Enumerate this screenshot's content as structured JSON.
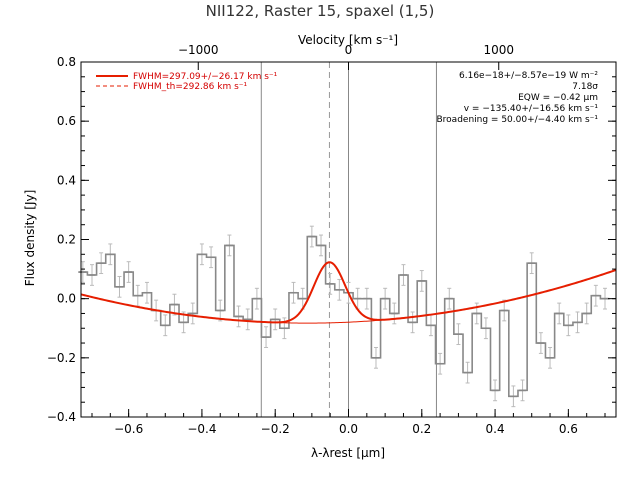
{
  "chart_data": {
    "type": "line",
    "title": "NII122, Raster 15, spaxel (1,5)",
    "xlabel": "λ-λrest [μm]",
    "ylabel": "Flux density [Jy]",
    "top_xlabel": "Velocity [km s⁻¹]",
    "xlim": [
      -0.73,
      0.73
    ],
    "ylim": [
      -0.4,
      0.8
    ],
    "top_axis_ticks": [
      {
        "value": -1000,
        "label": "−1000",
        "x_um": -0.41
      },
      {
        "value": 0,
        "label": "0",
        "x_um": 0.0
      },
      {
        "value": 1000,
        "label": "1000",
        "x_um": 0.41
      }
    ],
    "x_ticks": [
      -0.6,
      -0.4,
      -0.2,
      0.0,
      0.2,
      0.4,
      0.6
    ],
    "x_tick_labels": [
      "−0.6",
      "−0.4",
      "−0.2",
      "0.0",
      "0.2",
      "0.4",
      "0.6"
    ],
    "y_ticks": [
      -0.4,
      -0.2,
      0.0,
      0.2,
      0.4,
      0.6,
      0.8
    ],
    "y_tick_labels": [
      "−0.4",
      "−0.2",
      "0.0",
      "0.2",
      "0.4",
      "0.6",
      "0.8"
    ],
    "vertical_lines": [
      {
        "x": -0.238,
        "style": "solid",
        "color": "#888888"
      },
      {
        "x": -0.052,
        "style": "dashed",
        "color": "#999999"
      },
      {
        "x": 0.0,
        "style": "solid",
        "color": "#888888"
      },
      {
        "x": 0.24,
        "style": "solid",
        "color": "#888888"
      }
    ],
    "series": [
      {
        "kind": "step",
        "color": "#888888",
        "bin_width": 0.025,
        "x": [
          -0.725,
          -0.7,
          -0.675,
          -0.65,
          -0.625,
          -0.6,
          -0.575,
          -0.55,
          -0.525,
          -0.5,
          -0.475,
          -0.45,
          -0.425,
          -0.4,
          -0.375,
          -0.35,
          -0.325,
          -0.3,
          -0.275,
          -0.25,
          -0.225,
          -0.2,
          -0.175,
          -0.15,
          -0.125,
          -0.1,
          -0.075,
          -0.05,
          -0.025,
          0.0,
          0.025,
          0.05,
          0.075,
          0.1,
          0.125,
          0.15,
          0.175,
          0.2,
          0.225,
          0.25,
          0.275,
          0.3,
          0.325,
          0.35,
          0.375,
          0.4,
          0.425,
          0.45,
          0.475,
          0.5,
          0.525,
          0.55,
          0.575,
          0.6,
          0.625,
          0.65,
          0.675,
          0.7
        ],
        "y": [
          0.09,
          0.08,
          0.12,
          0.15,
          0.04,
          0.09,
          0.01,
          0.02,
          -0.04,
          -0.09,
          -0.02,
          -0.08,
          -0.05,
          0.15,
          0.14,
          -0.04,
          0.18,
          -0.06,
          -0.07,
          0.0,
          -0.13,
          -0.07,
          -0.1,
          0.02,
          0.0,
          0.21,
          0.18,
          0.05,
          0.03,
          0.02,
          0.0,
          0.0,
          -0.2,
          0.0,
          -0.05,
          0.08,
          -0.08,
          0.06,
          -0.09,
          -0.22,
          0.0,
          -0.12,
          -0.25,
          -0.05,
          -0.1,
          -0.31,
          -0.04,
          -0.33,
          -0.31,
          0.12,
          -0.15,
          -0.2,
          -0.05,
          -0.09,
          -0.08,
          -0.05,
          0.01,
          0.0
        ],
        "yerr": 0.035
      },
      {
        "kind": "fit",
        "color": "#e61e00",
        "baseline": {
          "c0": -0.0795,
          "c1": 0.0565,
          "c2": 0.254
        },
        "gaussian": {
          "amplitude": 0.205,
          "center": -0.052,
          "sigma": 0.043
        }
      }
    ],
    "legend": {
      "position": "top-left",
      "entries": [
        {
          "label": "FWHM=297.09+/−26.17 km s⁻¹",
          "style": "solid",
          "color": "#e61e00"
        },
        {
          "label": "FWHM_th=292.86 km s⁻¹",
          "style": "dashed",
          "color": "#e61e00"
        }
      ]
    },
    "annotations": [
      "6.16e−18+/−8.57e−19 W m⁻²",
      "7.18σ",
      "EQW = −0.42 μm",
      "v = −135.40+/−16.56 km s⁻¹",
      "Broadening = 50.00+/−4.40 km s⁻¹"
    ]
  }
}
